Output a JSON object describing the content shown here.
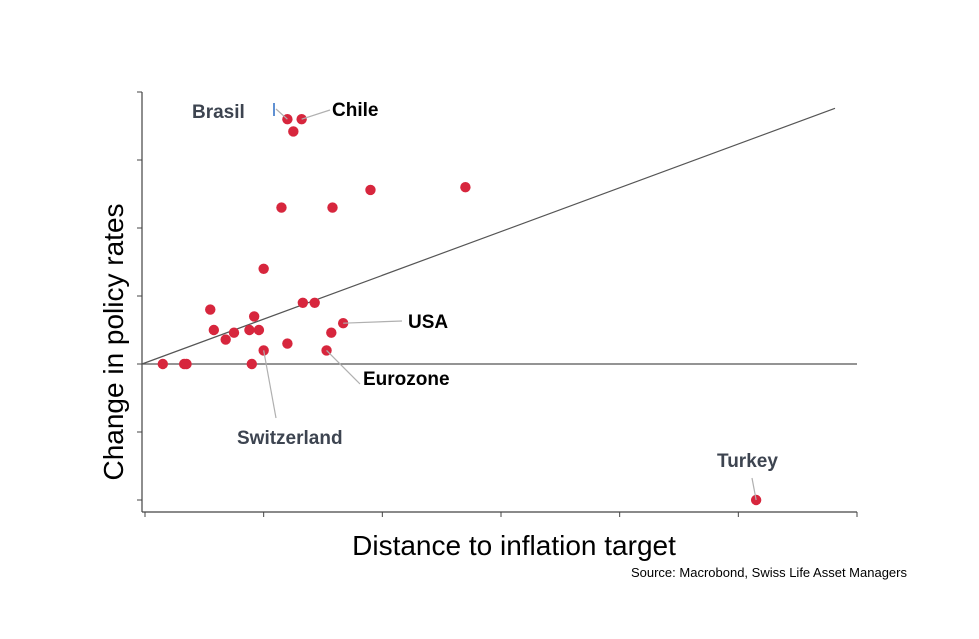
{
  "chart_data": {
    "type": "scatter",
    "xlabel": "Distance to inflation target",
    "ylabel": "Change in policy rates",
    "xlim": [
      0,
      6
    ],
    "ylim": [
      -1,
      2.0
    ],
    "grid": false,
    "reference_line": {
      "x": [
        0,
        6
      ],
      "y": [
        0,
        1.88
      ]
    },
    "zero_line_y": 0,
    "points": [
      {
        "x": 0.15,
        "y": 0.0
      },
      {
        "x": 0.33,
        "y": 0.0
      },
      {
        "x": 0.35,
        "y": 0.0
      },
      {
        "x": 0.9,
        "y": 0.0
      },
      {
        "x": 1.0,
        "y": 0.1
      },
      {
        "x": 0.55,
        "y": 0.4
      },
      {
        "x": 0.58,
        "y": 0.25
      },
      {
        "x": 0.68,
        "y": 0.18
      },
      {
        "x": 0.75,
        "y": 0.23
      },
      {
        "x": 0.88,
        "y": 0.25
      },
      {
        "x": 0.92,
        "y": 0.35
      },
      {
        "x": 0.96,
        "y": 0.25
      },
      {
        "x": 1.0,
        "y": 0.7
      },
      {
        "x": 1.2,
        "y": 0.15
      },
      {
        "x": 1.33,
        "y": 0.45
      },
      {
        "x": 1.43,
        "y": 0.45
      },
      {
        "x": 1.53,
        "y": 0.1
      },
      {
        "x": 1.57,
        "y": 0.23
      },
      {
        "x": 1.67,
        "y": 0.3
      },
      {
        "x": 1.15,
        "y": 1.15
      },
      {
        "x": 1.58,
        "y": 1.15
      },
      {
        "x": 1.9,
        "y": 1.28
      },
      {
        "x": 2.7,
        "y": 1.3
      },
      {
        "x": 1.2,
        "y": 1.8
      },
      {
        "x": 1.32,
        "y": 1.8
      },
      {
        "x": 1.25,
        "y": 1.71
      },
      {
        "x": 5.15,
        "y": -1.0
      }
    ],
    "point_color": "#d7263d",
    "annotations": [
      {
        "label": "Brasil",
        "x": 1.2,
        "y": 1.8,
        "color": "#3d4450"
      },
      {
        "label": "Chile",
        "x": 1.32,
        "y": 1.8,
        "color": "#000000"
      },
      {
        "label": "USA",
        "x": 1.67,
        "y": 0.3,
        "color": "#000000"
      },
      {
        "label": "Eurozone",
        "x": 1.53,
        "y": 0.1,
        "color": "#000000"
      },
      {
        "label": "Switzerland",
        "x": 1.0,
        "y": 0.1,
        "color": "#3d4450"
      },
      {
        "label": "Turkey",
        "x": 5.15,
        "y": -1.0,
        "color": "#3d4450"
      }
    ]
  },
  "source_text": "Source: Macrobond, Swiss Life Asset Managers"
}
